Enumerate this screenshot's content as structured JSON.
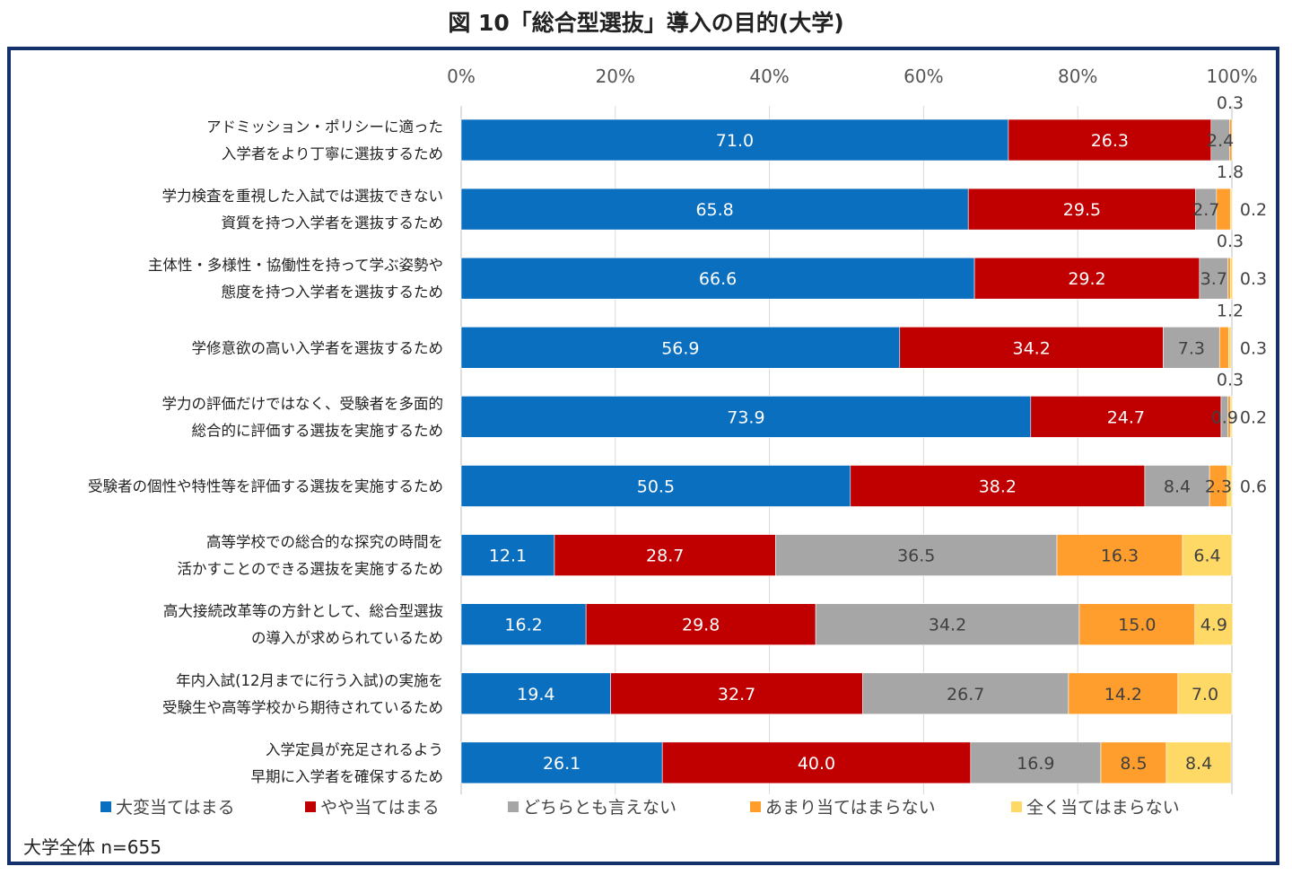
{
  "title": "図 10「総合型選抜」導入の目的(大学)",
  "sample_note": "大学全体 n=655",
  "chart_data": {
    "type": "bar",
    "orientation": "horizontal",
    "stacked": true,
    "percent_axis": true,
    "title": "図 10「総合型選抜」導入の目的(大学)",
    "xlim": [
      0,
      100
    ],
    "x_ticks": [
      "0%",
      "20%",
      "40%",
      "60%",
      "80%",
      "100%"
    ],
    "legend_position": "bottom",
    "categories": [
      [
        "アドミッション・ポリシーに適った",
        "入学者をより丁寧に選抜するため"
      ],
      [
        "学力検査を重視した入試では選抜できない",
        "資質を持つ入学者を選抜するため"
      ],
      [
        "主体性・多様性・協働性を持って学ぶ姿勢や",
        "態度を持つ入学者を選抜するため"
      ],
      [
        "学修意欲の高い入学者を選抜するため"
      ],
      [
        "学力の評価だけではなく、受験者を多面的",
        "総合的に評価する選抜を実施するため"
      ],
      [
        "受験者の個性や特性等を評価する選抜を実施するため"
      ],
      [
        "高等学校での総合的な探究の時間を",
        "活かすことのできる選抜を実施するため"
      ],
      [
        "高大接続改革等の方針として、総合型選抜",
        "の導入が求められているため"
      ],
      [
        "年内入試(12月までに行う入試)の実施を",
        "受験生や高等学校から期待されているため"
      ],
      [
        "入学定員が充足されるよう",
        "早期に入学者を確保するため"
      ]
    ],
    "series": [
      {
        "name": "大変当てはまる",
        "color": "#0b6fc0",
        "text_color": "#ffffff",
        "values": [
          71.0,
          65.8,
          66.6,
          56.9,
          73.9,
          50.5,
          12.1,
          16.2,
          19.4,
          26.1
        ]
      },
      {
        "name": "やや当てはまる",
        "color": "#c00000",
        "text_color": "#ffffff",
        "values": [
          26.3,
          29.5,
          29.2,
          34.2,
          24.7,
          38.2,
          28.7,
          29.8,
          32.7,
          40.0
        ]
      },
      {
        "name": "どちらとも言えない",
        "color": "#a6a6a6",
        "text_color": "#404040",
        "values": [
          2.4,
          2.7,
          3.7,
          7.3,
          0.9,
          8.4,
          36.5,
          34.2,
          26.7,
          16.9
        ]
      },
      {
        "name": "あまり当てはまらない",
        "color": "#ff9e2c",
        "text_color": "#404040",
        "values": [
          0.3,
          1.8,
          0.3,
          1.2,
          0.3,
          2.3,
          16.3,
          15.0,
          14.2,
          8.5
        ]
      },
      {
        "name": "全く当てはまらない",
        "color": "#ffd966",
        "text_color": "#404040",
        "values": [
          0.0,
          0.2,
          0.3,
          0.3,
          0.2,
          0.6,
          6.4,
          4.9,
          7.0,
          8.4
        ]
      }
    ],
    "labels": [
      {
        "row": 0,
        "inside": [
          "71.0",
          "26.3",
          "2.4",
          null,
          null
        ],
        "above": "0.3",
        "right": null
      },
      {
        "row": 1,
        "inside": [
          "65.8",
          "29.5",
          "2.7",
          null,
          null
        ],
        "above": "1.8",
        "right": "0.2"
      },
      {
        "row": 2,
        "inside": [
          "66.6",
          "29.2",
          "3.7",
          null,
          null
        ],
        "above": "0.3",
        "right": "0.3"
      },
      {
        "row": 3,
        "inside": [
          "56.9",
          "34.2",
          "7.3",
          null,
          null
        ],
        "above": "1.2",
        "right": "0.3"
      },
      {
        "row": 4,
        "inside": [
          "73.9",
          "24.7",
          "0.9",
          null,
          null
        ],
        "above": "0.3",
        "right": "0.2"
      },
      {
        "row": 5,
        "inside": [
          "50.5",
          "38.2",
          "8.4",
          "2.3",
          null
        ],
        "above": null,
        "right": "0.6"
      },
      {
        "row": 6,
        "inside": [
          "12.1",
          "28.7",
          "36.5",
          "16.3",
          "6.4"
        ],
        "above": null,
        "right": null
      },
      {
        "row": 7,
        "inside": [
          "16.2",
          "29.8",
          "34.2",
          "15.0",
          "4.9"
        ],
        "above": null,
        "right": null
      },
      {
        "row": 8,
        "inside": [
          "19.4",
          "32.7",
          "26.7",
          "14.2",
          "7.0"
        ],
        "above": null,
        "right": null
      },
      {
        "row": 9,
        "inside": [
          "26.1",
          "40.0",
          "16.9",
          "8.5",
          "8.4"
        ],
        "above": null,
        "right": null
      }
    ]
  }
}
